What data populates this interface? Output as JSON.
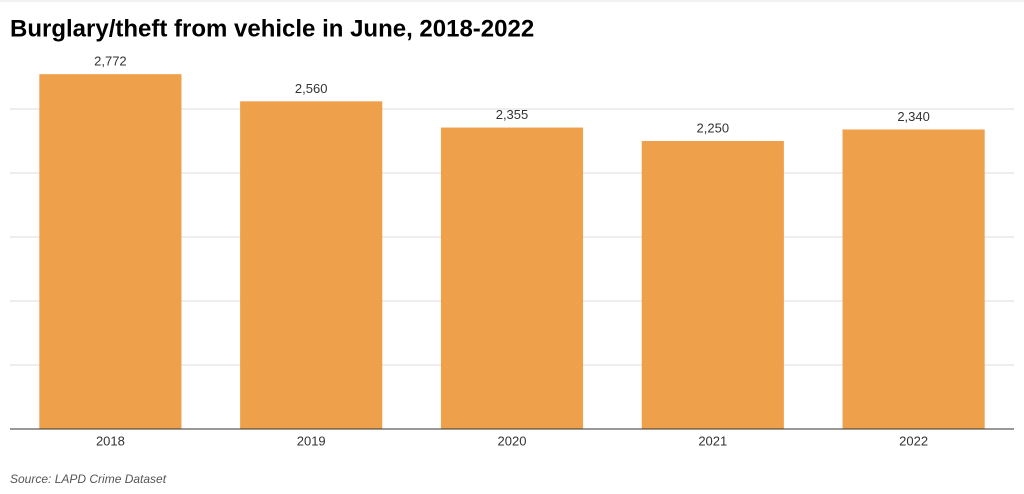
{
  "chart_data": {
    "type": "bar",
    "title": "Burglary/theft from vehicle in June, 2018-2022",
    "source": "Source: LAPD Crime Dataset",
    "categories": [
      "2018",
      "2019",
      "2020",
      "2021",
      "2022"
    ],
    "values": [
      2772,
      2560,
      2355,
      2250,
      2340
    ],
    "value_labels": [
      "2,772",
      "2,560",
      "2,355",
      "2,250",
      "2,340"
    ],
    "color": "#efa04a",
    "ylim": [
      0,
      3000
    ],
    "yticks": [
      0,
      500,
      1000,
      1500,
      2000,
      2500
    ],
    "grid": true
  }
}
